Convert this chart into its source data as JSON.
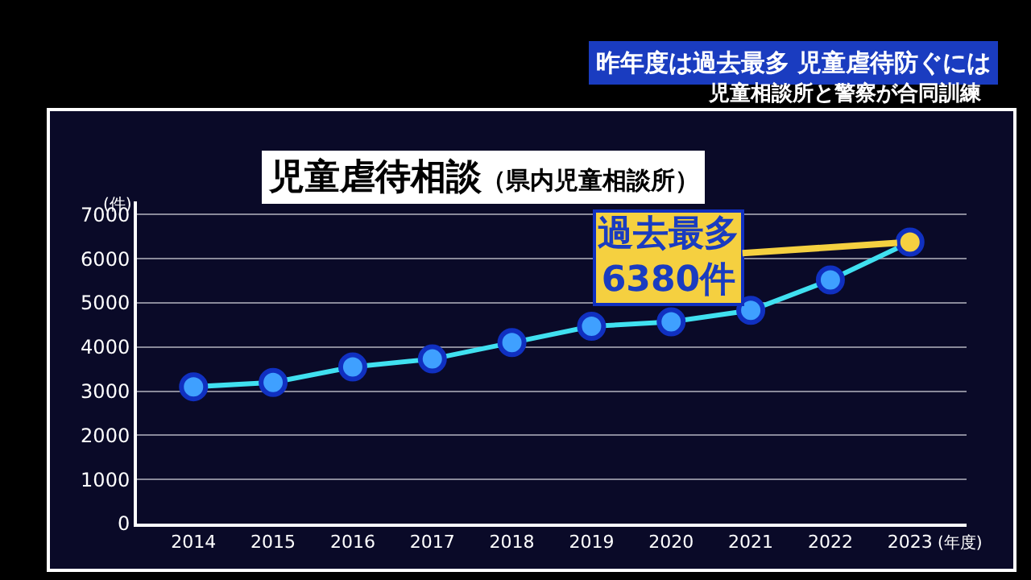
{
  "chart_data": {
    "type": "line",
    "title": "児童虐待相談",
    "subtitle": "（県内児童相談所）",
    "ylabel": "(件)",
    "xlabel": "(年度)",
    "categories": [
      "2014",
      "2015",
      "2016",
      "2017",
      "2018",
      "2019",
      "2020",
      "2021",
      "2022",
      "2023"
    ],
    "series": [
      {
        "color": "#40e0f0",
        "colors": [
          "#3fa0ff",
          "#3fa0ff",
          "#3fa0ff",
          "#3fa0ff",
          "#3fa0ff",
          "#3fa0ff",
          "#3fa0ff",
          "#3fa0ff",
          "#3fa0ff",
          "#f5d040"
        ],
        "values": [
          3100,
          3200,
          3550,
          3730,
          4100,
          4470,
          4570,
          4830,
          5520,
          6380
        ]
      }
    ],
    "ylim": [
      0,
      7300
    ],
    "yticks": [
      0,
      1000,
      2000,
      3000,
      4000,
      5000,
      6000,
      7000
    ],
    "grid": "y",
    "marker": "circle",
    "line_style": "solid",
    "annotations": [
      {
        "text": "過去最多\n6380件",
        "x": "2023",
        "y": 6380
      },
      "昨年度は過去最多 児童虐待防ぐには",
      "児童相談所と警察が合同訓練"
    ]
  }
}
